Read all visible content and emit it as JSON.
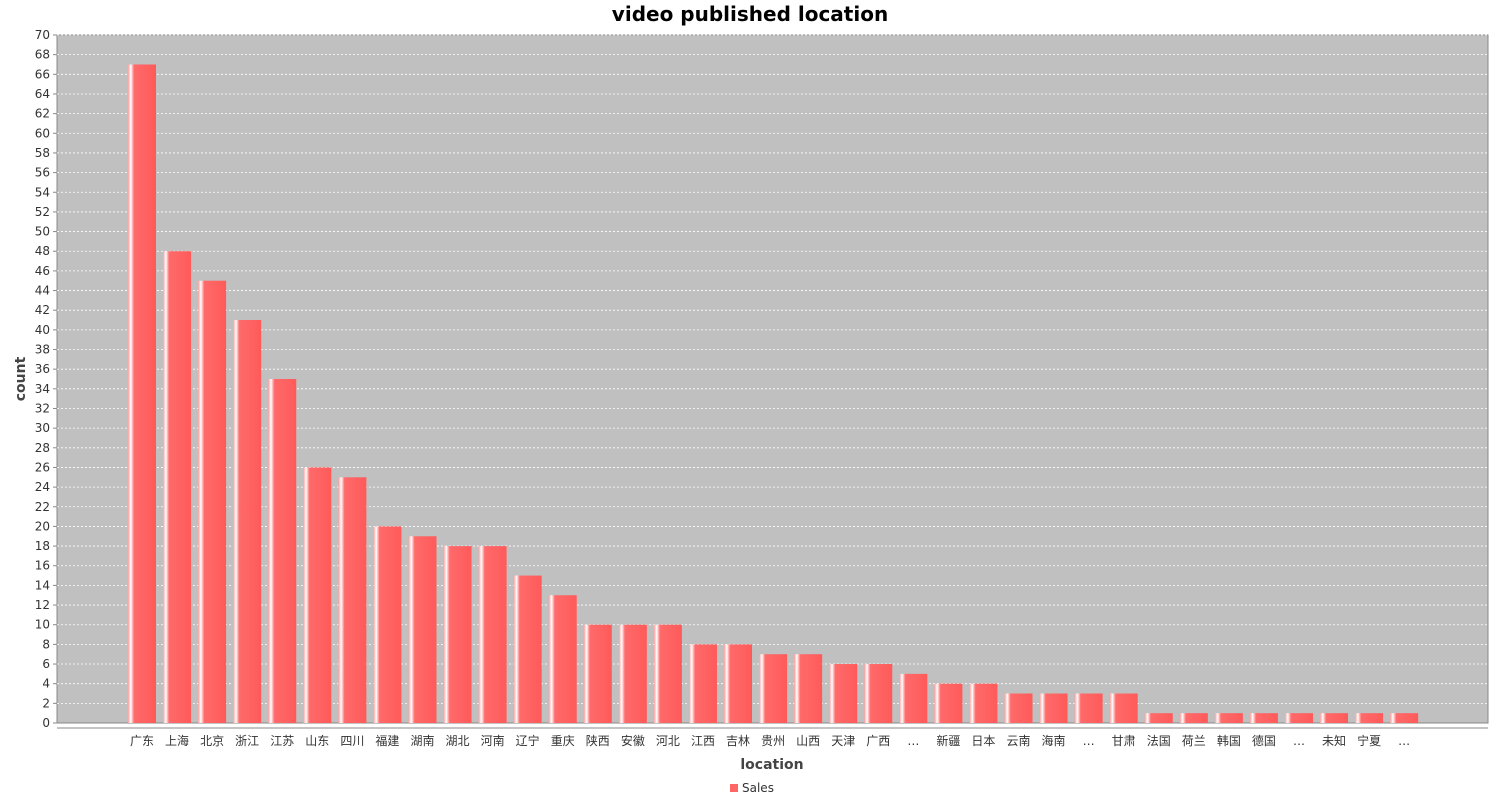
{
  "chart_data": {
    "type": "bar",
    "title": "video published location",
    "xlabel": "location",
    "ylabel": "count",
    "ylim": [
      0,
      70
    ],
    "ytick_step": 2,
    "grid": true,
    "legend_position": "bottom",
    "bar_color": "#ff6666",
    "plot_background": "#c0c0c0",
    "categories": [
      "广东",
      "上海",
      "北京",
      "浙江",
      "江苏",
      "山东",
      "四川",
      "福建",
      "湖南",
      "湖北",
      "河南",
      "辽宁",
      "重庆",
      "陕西",
      "安徽",
      "河北",
      "江西",
      "吉林",
      "贵州",
      "山西",
      "天津",
      "广西",
      "…",
      "新疆",
      "日本",
      "云南",
      "海南",
      "…",
      "甘肃",
      "法国",
      "荷兰",
      "韩国",
      "德国",
      "…",
      "未知",
      "宁夏",
      "…"
    ],
    "series": [
      {
        "name": "Sales",
        "values": [
          67,
          48,
          45,
          41,
          35,
          26,
          25,
          20,
          19,
          18,
          18,
          15,
          13,
          10,
          10,
          10,
          8,
          8,
          7,
          7,
          6,
          6,
          5,
          4,
          4,
          3,
          3,
          3,
          3,
          1,
          1,
          1,
          1,
          1,
          1,
          1,
          1
        ]
      }
    ]
  }
}
